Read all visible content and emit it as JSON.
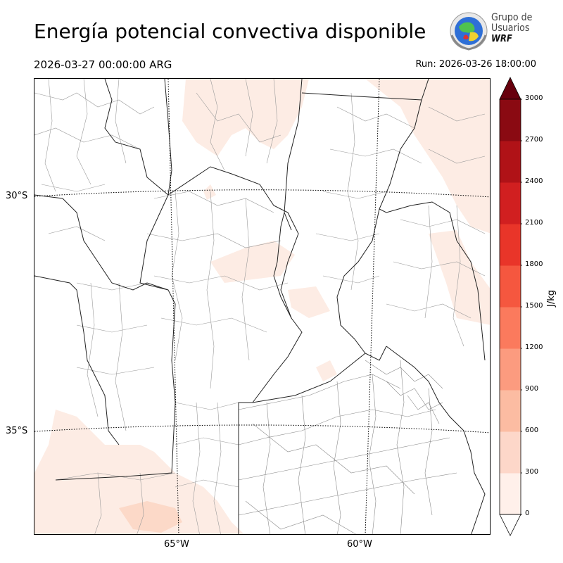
{
  "header": {
    "title": "Energía potencial convectiva disponible",
    "valid_time": "2026-03-27 00:00:00 ARG",
    "run_time": "Run: 2026-03-26 18:00:00"
  },
  "logo": {
    "line1": "Grupo de",
    "line2": "Usuarios",
    "line3": "WRF"
  },
  "map": {
    "lat_labels": [
      "30°S",
      "35°S"
    ],
    "lon_labels": [
      "65°W",
      "60°W"
    ]
  },
  "colorbar": {
    "unit": "J/kg",
    "ticks": [
      "0",
      "300",
      "600",
      "900",
      "1200",
      "1500",
      "1800",
      "2100",
      "2400",
      "2700",
      "3000"
    ],
    "colors": [
      "#fff0ea",
      "#fdd7c9",
      "#fcbca2",
      "#fc9b7f",
      "#fb7a5d",
      "#f5573f",
      "#e93529",
      "#d11f20",
      "#b01217",
      "#8a0a12"
    ],
    "over_color": "#67000d",
    "under_color": "#ffffff"
  }
}
